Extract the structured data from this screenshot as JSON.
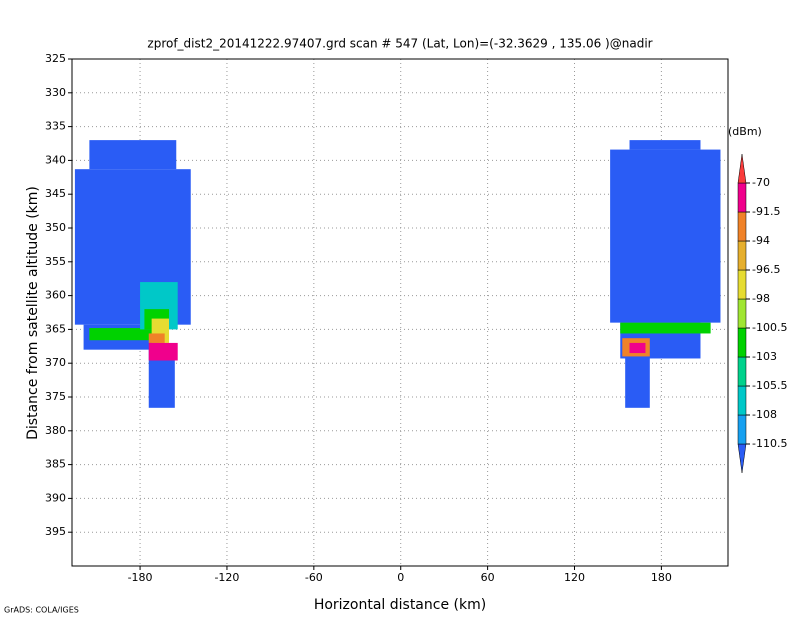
{
  "chart_data": {
    "type": "heatmap",
    "title": "zprof_dist2_20141222.97407.grd  scan # 547  (Lat, Lon)=(-32.3629 , 135.06 )@nadir",
    "x_label": "Horizontal distance (km)",
    "y_label": "Distance from satellite altitude (km)",
    "footer": "GrADS: COLA/IGES",
    "colorbar_label": "(dBm)",
    "xlim": [
      -227,
      226
    ],
    "ylim": [
      400,
      325
    ],
    "xticks": [
      -180,
      -120,
      -60,
      0,
      60,
      120,
      180
    ],
    "yticks": [
      325,
      330,
      335,
      340,
      345,
      350,
      355,
      360,
      365,
      370,
      375,
      380,
      385,
      390,
      395
    ],
    "grid": true,
    "levels": [
      -110.5,
      -108,
      -105.5,
      -103,
      -100.5,
      -98,
      -96.5,
      -94,
      -91.5,
      -70
    ],
    "colors": [
      "#2a5cf5",
      "#16a0f0",
      "#00c8c8",
      "#00d28c",
      "#00d200",
      "#a0e632",
      "#e6dc32",
      "#e6af2d",
      "#f08228",
      "#f0008c",
      "#fa3c3c"
    ],
    "cells": [
      {
        "x": [
          -215,
          -155
        ],
        "y": [
          337,
          341.3
        ],
        "value": -112
      },
      {
        "x": [
          -225,
          -145
        ],
        "y": [
          341.3,
          364.3
        ],
        "value": -112
      },
      {
        "x": [
          -219,
          -167
        ],
        "y": [
          364.3,
          368
        ],
        "value": -112
      },
      {
        "x": [
          -174,
          -156
        ],
        "y": [
          367.8,
          376.6
        ],
        "value": -112
      },
      {
        "x": [
          -215,
          -167
        ],
        "y": [
          364.8,
          366.6
        ],
        "value": -102
      },
      {
        "x": [
          -180,
          -154
        ],
        "y": [
          358,
          365
        ],
        "value": -107
      },
      {
        "x": [
          -177,
          -160
        ],
        "y": [
          362,
          365
        ],
        "value": -101
      },
      {
        "x": [
          -172,
          -160
        ],
        "y": [
          363.4,
          367
        ],
        "value": -97
      },
      {
        "x": [
          -174,
          -163
        ],
        "y": [
          365.6,
          367
        ],
        "value": -93
      },
      {
        "x": [
          -174,
          -154
        ],
        "y": [
          367,
          369.6
        ],
        "value": -85
      },
      {
        "x": [
          158,
          207
        ],
        "y": [
          337,
          338.4
        ],
        "value": -112
      },
      {
        "x": [
          144.6,
          220.8
        ],
        "y": [
          338.4,
          364
        ],
        "value": -112
      },
      {
        "x": [
          151.6,
          207
        ],
        "y": [
          364,
          369.3
        ],
        "value": -112
      },
      {
        "x": [
          155,
          172
        ],
        "y": [
          369,
          376.6
        ],
        "value": -112
      },
      {
        "x": [
          151.6,
          214
        ],
        "y": [
          364,
          365.6
        ],
        "value": -102
      },
      {
        "x": [
          153,
          172
        ],
        "y": [
          366.3,
          369
        ],
        "value": -93
      },
      {
        "x": [
          158,
          169
        ],
        "y": [
          367,
          368.5
        ],
        "value": -85
      }
    ]
  }
}
